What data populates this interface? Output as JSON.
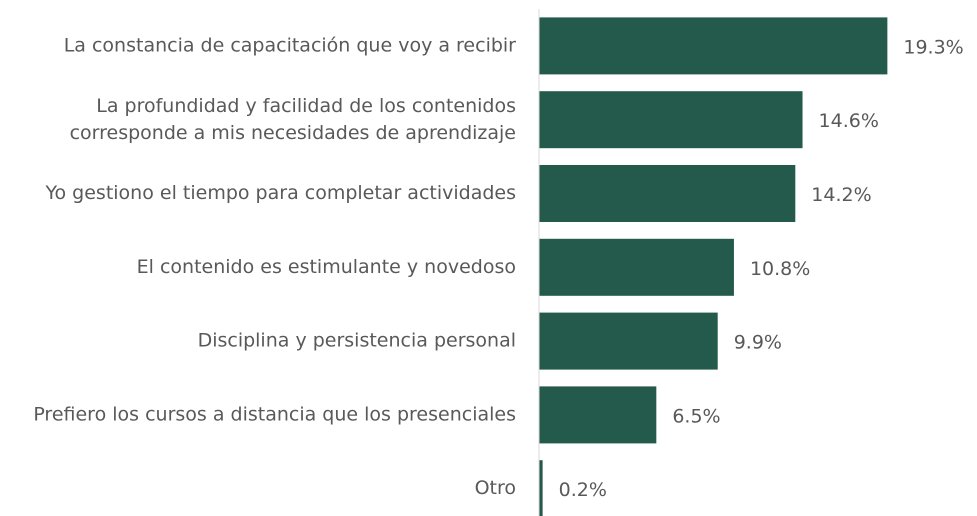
{
  "chart_data": {
    "type": "bar",
    "orientation": "horizontal",
    "categories": [
      "La constancia de capacitación que voy a recibir",
      [
        "La profundidad y facilidad de los contenidos",
        "corresponde a mis necesidades de aprendizaje"
      ],
      "Yo gestiono el tiempo para completar actividades",
      "El contenido es estimulante y novedoso",
      "Disciplina y persistencia personal",
      "Prefiero los cursos a distancia que los presenciales",
      "Otro"
    ],
    "values": [
      19.3,
      14.6,
      14.2,
      10.8,
      9.9,
      6.5,
      0.2
    ],
    "value_labels": [
      "19.3%",
      "14.6%",
      "14.2%",
      "10.8%",
      "9.9%",
      "6.5%",
      "0.2%"
    ],
    "color": "#245a4b",
    "xlim": [
      0,
      20
    ]
  }
}
